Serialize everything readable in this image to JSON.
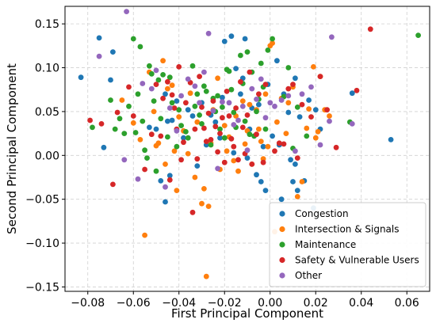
{
  "chart_data": {
    "type": "scatter",
    "xlabel": "First Principal Component",
    "ylabel": "Second Principal Component",
    "xlim": [
      -0.09,
      0.07
    ],
    "ylim": [
      -0.155,
      0.17
    ],
    "x_ticks": [
      -0.08,
      -0.06,
      -0.04,
      -0.02,
      0.0,
      0.02,
      0.04,
      0.06
    ],
    "x_tick_labels": [
      "−0.08",
      "−0.06",
      "−0.04",
      "−0.02",
      "0.00",
      "0.02",
      "0.04",
      "0.06"
    ],
    "y_ticks": [
      -0.15,
      -0.1,
      -0.05,
      0.0,
      0.05,
      0.1,
      0.15
    ],
    "y_tick_labels": [
      "−0.15",
      "−0.10",
      "−0.05",
      "0.00",
      "0.05",
      "0.10",
      "0.15"
    ],
    "grid": true,
    "legend_position": "bottom-right",
    "series": [
      {
        "name": "Congestion",
        "color": "#1f77b4",
        "points": [
          [
            -0.083,
            0.089
          ],
          [
            -0.075,
            0.134
          ],
          [
            -0.073,
            0.009
          ],
          [
            -0.069,
            0.118
          ],
          [
            -0.07,
            0.086
          ],
          [
            -0.053,
            0.032
          ],
          [
            -0.05,
            0.03
          ],
          [
            -0.048,
            -0.029
          ],
          [
            -0.046,
            0.07
          ],
          [
            -0.046,
            -0.053
          ],
          [
            -0.045,
            0.039
          ],
          [
            -0.044,
            -0.023
          ],
          [
            -0.043,
            0.04
          ],
          [
            -0.041,
            0.062
          ],
          [
            -0.038,
            0.02
          ],
          [
            -0.036,
            0.052
          ],
          [
            -0.034,
            0.045
          ],
          [
            -0.032,
            -0.012
          ],
          [
            -0.03,
            0.06
          ],
          [
            -0.028,
            0.012
          ],
          [
            -0.026,
            0.046
          ],
          [
            -0.024,
            0.038
          ],
          [
            -0.022,
            0.02
          ],
          [
            -0.021,
            0.066
          ],
          [
            -0.02,
            0.13
          ],
          [
            -0.017,
            0.136
          ],
          [
            -0.016,
            0.003
          ],
          [
            -0.015,
            0.099
          ],
          [
            -0.013,
            0.07
          ],
          [
            -0.012,
            0.088
          ],
          [
            -0.011,
            0.133
          ],
          [
            -0.01,
            -0.003
          ],
          [
            -0.009,
            0.03
          ],
          [
            -0.008,
            0.054
          ],
          [
            -0.006,
            -0.022
          ],
          [
            -0.005,
            0.058
          ],
          [
            -0.004,
            -0.03
          ],
          [
            -0.003,
            0.01
          ],
          [
            -0.002,
            -0.04
          ],
          [
            -0.001,
            0.081
          ],
          [
            0.001,
            0.022
          ],
          [
            0.003,
            0.108
          ],
          [
            0.004,
            0.012
          ],
          [
            0.005,
            -0.05
          ],
          [
            0.006,
            0.07
          ],
          [
            0.008,
            0.049
          ],
          [
            0.009,
            -0.005
          ],
          [
            0.01,
            -0.03
          ],
          [
            0.011,
            0.088
          ],
          [
            0.011,
            -0.01
          ],
          [
            0.012,
            -0.04
          ],
          [
            0.013,
            0.044
          ],
          [
            0.015,
            -0.029
          ],
          [
            0.017,
            0.063
          ],
          [
            0.019,
            -0.06
          ],
          [
            0.02,
            0.052
          ],
          [
            0.022,
            0.03
          ],
          [
            0.036,
            0.071
          ],
          [
            0.053,
            0.018
          ]
        ]
      },
      {
        "name": "Intersection & Signals",
        "color": "#ff7f0e",
        "points": [
          [
            -0.065,
            0.063
          ],
          [
            -0.06,
            0.037
          ],
          [
            -0.057,
            0.018
          ],
          [
            -0.055,
            -0.091
          ],
          [
            -0.053,
            0.095
          ],
          [
            -0.051,
            0.05
          ],
          [
            -0.05,
            0.011
          ],
          [
            -0.049,
            0.014
          ],
          [
            -0.047,
            0.108
          ],
          [
            -0.046,
            -0.01
          ],
          [
            -0.045,
            0.076
          ],
          [
            -0.043,
            0.08
          ],
          [
            -0.042,
            0.005
          ],
          [
            -0.041,
            -0.04
          ],
          [
            -0.04,
            0.044
          ],
          [
            -0.038,
            0.028
          ],
          [
            -0.036,
            0.002
          ],
          [
            -0.035,
            0.071
          ],
          [
            -0.033,
            -0.025
          ],
          [
            -0.032,
            0.038
          ],
          [
            -0.03,
            -0.055
          ],
          [
            -0.029,
            -0.038
          ],
          [
            -0.028,
            -0.138
          ],
          [
            -0.027,
            -0.058
          ],
          [
            -0.026,
            0.014
          ],
          [
            -0.025,
            0.052
          ],
          [
            -0.023,
            0.088
          ],
          [
            -0.022,
            -0.016
          ],
          [
            -0.02,
            0.034
          ],
          [
            -0.019,
            0.005
          ],
          [
            -0.018,
            0.021
          ],
          [
            -0.016,
            -0.006
          ],
          [
            -0.015,
            0.045
          ],
          [
            -0.014,
            -0.018
          ],
          [
            -0.012,
            0.062
          ],
          [
            -0.011,
            0.013
          ],
          [
            -0.01,
            0.028
          ],
          [
            -0.009,
            0.058
          ],
          [
            -0.008,
            -0.01
          ],
          [
            -0.006,
            0.052
          ],
          [
            -0.005,
            0.03
          ],
          [
            -0.004,
            0.016
          ],
          [
            -0.003,
            -0.004
          ],
          [
            -0.002,
            0.07
          ],
          [
            -0.001,
            0.01
          ],
          [
            0.0,
            0.125
          ],
          [
            0.001,
            0.128
          ],
          [
            0.002,
            -0.087
          ],
          [
            0.003,
            0.038
          ],
          [
            0.005,
            0.065
          ],
          [
            0.007,
            0.025
          ],
          [
            0.008,
            0.06
          ],
          [
            0.01,
            0.078
          ],
          [
            0.012,
            -0.047
          ],
          [
            0.014,
            -0.03
          ],
          [
            0.016,
            0.031
          ],
          [
            0.017,
            0.053
          ],
          [
            0.019,
            0.101
          ],
          [
            0.02,
            0.02
          ],
          [
            0.021,
            0.027
          ],
          [
            0.022,
            0.09
          ],
          [
            0.024,
            0.052
          ],
          [
            0.026,
            0.045
          ]
        ]
      },
      {
        "name": "Maintenance",
        "color": "#2ca02c",
        "points": [
          [
            -0.078,
            0.032
          ],
          [
            -0.07,
            0.063
          ],
          [
            -0.068,
            0.03
          ],
          [
            -0.066,
            0.042
          ],
          [
            -0.064,
            0.025
          ],
          [
            -0.062,
            0.056
          ],
          [
            -0.06,
            0.133
          ],
          [
            -0.059,
            0.026
          ],
          [
            -0.058,
            0.07
          ],
          [
            -0.057,
            0.124
          ],
          [
            -0.056,
            0.039
          ],
          [
            -0.055,
            0.006
          ],
          [
            -0.054,
            -0.003
          ],
          [
            -0.053,
            0.102
          ],
          [
            -0.052,
            0.093
          ],
          [
            -0.051,
            0.062
          ],
          [
            -0.05,
            -0.018
          ],
          [
            -0.049,
            0.086
          ],
          [
            -0.048,
            0.042
          ],
          [
            -0.047,
            0.092
          ],
          [
            -0.045,
            0.021
          ],
          [
            -0.044,
            0.089
          ],
          [
            -0.043,
            0.06
          ],
          [
            -0.041,
            0.01
          ],
          [
            -0.04,
            0.052
          ],
          [
            -0.039,
            0.034
          ],
          [
            -0.037,
            0.027
          ],
          [
            -0.036,
            0.02
          ],
          [
            -0.034,
            0.102
          ],
          [
            -0.033,
            0.056
          ],
          [
            -0.032,
            0.07
          ],
          [
            -0.031,
            0.046
          ],
          [
            -0.03,
            0.036
          ],
          [
            -0.029,
            0.079
          ],
          [
            -0.028,
            0.073
          ],
          [
            -0.026,
            0.012
          ],
          [
            -0.025,
            0.065
          ],
          [
            -0.024,
            0.05
          ],
          [
            -0.023,
            0.068
          ],
          [
            -0.022,
            0.03
          ],
          [
            -0.021,
            0.055
          ],
          [
            -0.02,
            0.02
          ],
          [
            -0.019,
            0.098
          ],
          [
            -0.018,
            0.096
          ],
          [
            -0.017,
            0.075
          ],
          [
            -0.016,
            0.049
          ],
          [
            -0.015,
            0.032
          ],
          [
            -0.013,
            0.114
          ],
          [
            -0.012,
            0.082
          ],
          [
            -0.011,
            0.039
          ],
          [
            -0.01,
            0.118
          ],
          [
            -0.009,
            0.024
          ],
          [
            -0.008,
            0.095
          ],
          [
            -0.007,
            0.022
          ],
          [
            -0.006,
            0.05
          ],
          [
            -0.005,
            0.064
          ],
          [
            -0.004,
            0.105
          ],
          [
            -0.003,
            0.078
          ],
          [
            -0.002,
            0.03
          ],
          [
            -0.001,
            0.12
          ],
          [
            0.001,
            0.133
          ],
          [
            0.006,
            0.067
          ],
          [
            0.008,
            0.1
          ],
          [
            0.01,
            0.008
          ],
          [
            0.012,
            0.055
          ],
          [
            0.016,
            0.022
          ],
          [
            0.035,
            0.038
          ],
          [
            0.065,
            0.137
          ]
        ]
      },
      {
        "name": "Safety & Vulnerable Users",
        "color": "#d62728",
        "points": [
          [
            -0.079,
            0.04
          ],
          [
            -0.074,
            0.036
          ],
          [
            -0.069,
            -0.033
          ],
          [
            -0.067,
            0.049
          ],
          [
            -0.062,
            0.078
          ],
          [
            -0.06,
            0.045
          ],
          [
            -0.055,
            -0.016
          ],
          [
            -0.052,
            0.024
          ],
          [
            -0.05,
            0.081
          ],
          [
            -0.048,
            0.022
          ],
          [
            -0.047,
            0.065
          ],
          [
            -0.045,
            0.084
          ],
          [
            -0.044,
            -0.028
          ],
          [
            -0.043,
            0.069
          ],
          [
            -0.042,
            0.054
          ],
          [
            -0.041,
            0.03
          ],
          [
            -0.04,
            0.101
          ],
          [
            -0.039,
            -0.005
          ],
          [
            -0.038,
            0.015
          ],
          [
            -0.037,
            0.06
          ],
          [
            -0.035,
            0.083
          ],
          [
            -0.034,
            -0.065
          ],
          [
            -0.033,
            0.03
          ],
          [
            -0.032,
            -0.004
          ],
          [
            -0.031,
            0.09
          ],
          [
            -0.03,
            0.055
          ],
          [
            -0.029,
            0.031
          ],
          [
            -0.028,
            0.016
          ],
          [
            -0.027,
            0.048
          ],
          [
            -0.026,
            0.018
          ],
          [
            -0.025,
            0.062
          ],
          [
            -0.024,
            0.033
          ],
          [
            -0.023,
            0.004
          ],
          [
            -0.022,
            0.025
          ],
          [
            -0.021,
            0.043
          ],
          [
            -0.02,
            -0.008
          ],
          [
            -0.019,
            0.073
          ],
          [
            -0.018,
            0.045
          ],
          [
            -0.017,
            0.019
          ],
          [
            -0.016,
            0.01
          ],
          [
            -0.015,
            0.054
          ],
          [
            -0.014,
            -0.005
          ],
          [
            -0.013,
            0.084
          ],
          [
            -0.012,
            0.032
          ],
          [
            -0.011,
            0.002
          ],
          [
            -0.01,
            0.046
          ],
          [
            -0.009,
            0.095
          ],
          [
            -0.008,
            -0.01
          ],
          [
            -0.006,
            0.024
          ],
          [
            -0.005,
            0.07
          ],
          [
            -0.003,
            -0.008
          ],
          [
            -0.002,
            0.081
          ],
          [
            0.002,
            0.005
          ],
          [
            0.004,
            0.014
          ],
          [
            0.006,
            0.013
          ],
          [
            0.008,
            0.076
          ],
          [
            0.01,
            0.081
          ],
          [
            0.012,
            -0.003
          ],
          [
            0.014,
            0.058
          ],
          [
            0.018,
            0.044
          ],
          [
            0.022,
            0.09
          ],
          [
            0.025,
            0.052
          ],
          [
            0.029,
            0.009
          ],
          [
            0.038,
            0.074
          ],
          [
            0.044,
            0.144
          ]
        ]
      },
      {
        "name": "Other",
        "color": "#9467bd",
        "points": [
          [
            -0.075,
            0.113
          ],
          [
            -0.064,
            -0.005
          ],
          [
            -0.063,
            0.164
          ],
          [
            -0.058,
            -0.027
          ],
          [
            -0.056,
            0.082
          ],
          [
            -0.052,
            0.076
          ],
          [
            -0.05,
            0.097
          ],
          [
            -0.046,
            -0.036
          ],
          [
            -0.044,
            0.054
          ],
          [
            -0.041,
            0.028
          ],
          [
            -0.039,
            0.068
          ],
          [
            -0.036,
            0.087
          ],
          [
            -0.033,
            0.079
          ],
          [
            -0.031,
            0.06
          ],
          [
            -0.029,
            0.095
          ],
          [
            -0.027,
            0.139
          ],
          [
            -0.025,
            0.051
          ],
          [
            -0.023,
            -0.015
          ],
          [
            -0.021,
            0.061
          ],
          [
            -0.018,
            0.06
          ],
          [
            -0.016,
            0.035
          ],
          [
            -0.014,
            0.04
          ],
          [
            -0.012,
            0.056
          ],
          [
            -0.01,
            0.006
          ],
          [
            -0.008,
            0.076
          ],
          [
            -0.006,
            0.064
          ],
          [
            -0.004,
            0.087
          ],
          [
            -0.002,
            0.043
          ],
          [
            0.0,
            0.06
          ],
          [
            0.002,
            0.056
          ],
          [
            0.005,
            0.063
          ],
          [
            0.008,
            0.068
          ],
          [
            0.011,
            0.005
          ],
          [
            0.014,
            0.07
          ],
          [
            0.018,
            0.078
          ],
          [
            0.022,
            0.012
          ],
          [
            0.026,
            0.039
          ],
          [
            0.027,
            0.135
          ],
          [
            0.036,
            0.036
          ]
        ]
      }
    ]
  }
}
